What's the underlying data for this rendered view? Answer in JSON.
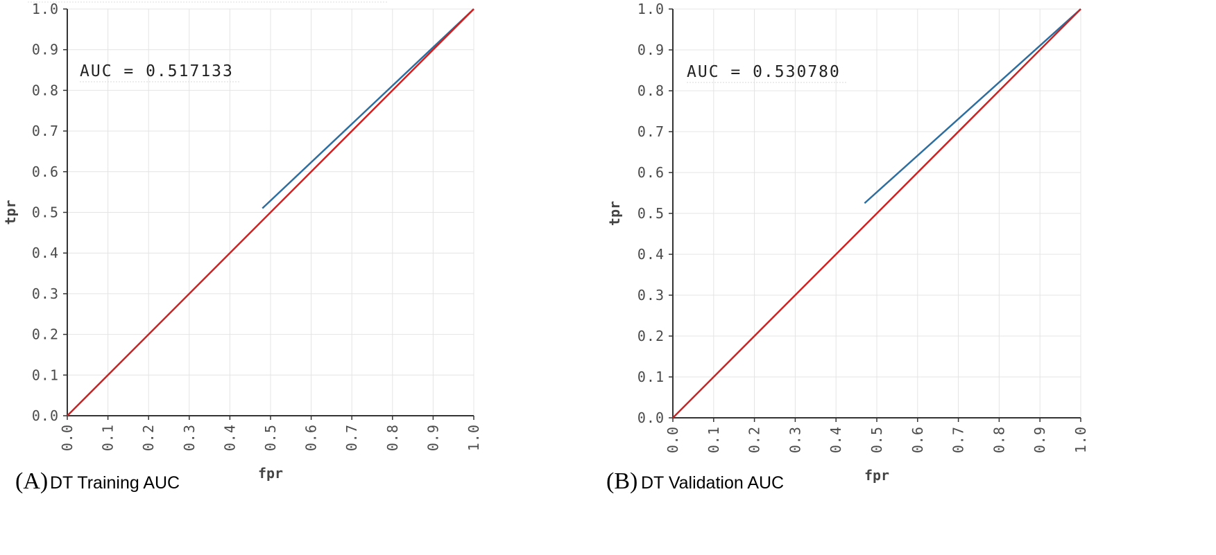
{
  "chart_data": [
    {
      "type": "line",
      "panel_letter": "(A)",
      "caption": "DT Training AUC",
      "xlabel": "fpr",
      "ylabel": "tpr",
      "xlim": [
        0.0,
        1.0
      ],
      "ylim": [
        0.0,
        1.0
      ],
      "grid": true,
      "x_ticks": [
        "0.0",
        "0.1",
        "0.2",
        "0.3",
        "0.4",
        "0.5",
        "0.6",
        "0.7",
        "0.8",
        "0.9",
        "1.0"
      ],
      "y_ticks": [
        "0.0",
        "0.1",
        "0.2",
        "0.3",
        "0.4",
        "0.5",
        "0.6",
        "0.7",
        "0.8",
        "0.9",
        "1.0"
      ],
      "annotation": "AUC = 0.517133",
      "series": [
        {
          "name": "roc",
          "color": "#2e6e9e",
          "x": [
            0.48,
            1.0
          ],
          "y": [
            0.51,
            1.0
          ]
        },
        {
          "name": "diagonal",
          "color": "#cc2222",
          "x": [
            0.0,
            1.0
          ],
          "y": [
            0.0,
            1.0
          ]
        }
      ]
    },
    {
      "type": "line",
      "panel_letter": "(B)",
      "caption": "DT Validation AUC",
      "xlabel": "fpr",
      "ylabel": "tpr",
      "xlim": [
        0.0,
        1.0
      ],
      "ylim": [
        0.0,
        1.0
      ],
      "grid": true,
      "x_ticks": [
        "0.0",
        "0.1",
        "0.2",
        "0.3",
        "0.4",
        "0.5",
        "0.6",
        "0.7",
        "0.8",
        "0.9",
        "1.0"
      ],
      "y_ticks": [
        "0.0",
        "0.1",
        "0.2",
        "0.3",
        "0.4",
        "0.5",
        "0.6",
        "0.7",
        "0.8",
        "0.9",
        "1.0"
      ],
      "annotation": "AUC = 0.530780",
      "series": [
        {
          "name": "roc",
          "color": "#2e6e9e",
          "x": [
            0.47,
            1.0
          ],
          "y": [
            0.525,
            1.0
          ]
        },
        {
          "name": "diagonal",
          "color": "#cc2222",
          "x": [
            0.0,
            1.0
          ],
          "y": [
            0.0,
            1.0
          ]
        }
      ]
    }
  ]
}
